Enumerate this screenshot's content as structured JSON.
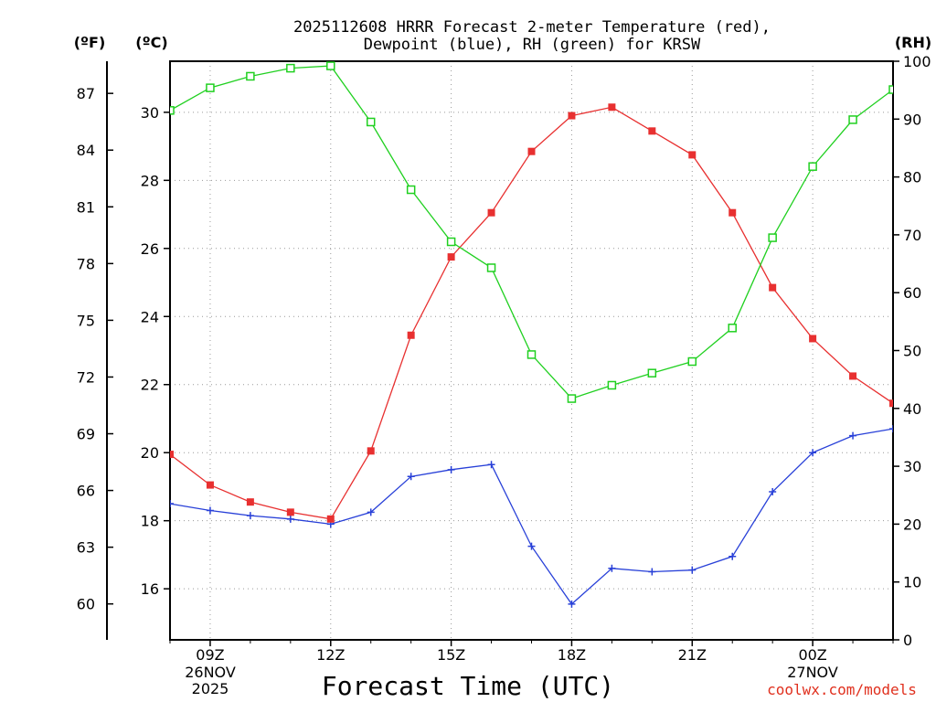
{
  "title_line1": "2025112608 HRRR Forecast 2-meter Temperature (red),",
  "title_line2": "Dewpoint (blue), RH (green) for KRSW",
  "units": {
    "f": "(ºF)",
    "c": "(ºC)",
    "rh": "(RH)"
  },
  "xlabel": "Forecast Time (UTC)",
  "credit": "coolwx.com/models",
  "date_labels": {
    "start_line1": "26NOV",
    "start_line2": "2025",
    "next_day": "27NOV"
  },
  "colors": {
    "temp": "#e83030",
    "dew": "#2840d8",
    "rh": "#20d020"
  },
  "chart_data": {
    "type": "line",
    "title": "2025112608 HRRR Forecast 2-meter Temperature (red), Dewpoint (blue), RH (green) for KRSW",
    "xlabel": "Forecast Time (UTC)",
    "x": [
      0,
      1,
      2,
      3,
      4,
      5,
      6,
      7,
      8,
      9,
      10,
      11,
      12,
      13,
      14,
      15,
      16,
      17,
      18
    ],
    "x_tick_positions": [
      1,
      4,
      7,
      10,
      13,
      16
    ],
    "x_tick_labels": [
      "09Z",
      "12Z",
      "15Z",
      "18Z",
      "21Z",
      "00Z"
    ],
    "xlim": [
      0,
      18
    ],
    "ylim_c": [
      14.5,
      31.5
    ],
    "ylim_rh": [
      0,
      100
    ],
    "c_ticks": [
      16,
      18,
      20,
      22,
      24,
      26,
      28,
      30
    ],
    "f_ticks": [
      60,
      63,
      66,
      69,
      72,
      75,
      78,
      81,
      84,
      87
    ],
    "rh_ticks": [
      0,
      10,
      20,
      30,
      40,
      50,
      60,
      70,
      80,
      90,
      100
    ],
    "series": [
      {
        "name": "Temperature",
        "axis": "c",
        "marker": "filled-square",
        "values": [
          19.95,
          19.05,
          18.55,
          18.25,
          18.05,
          20.05,
          23.45,
          25.75,
          27.05,
          28.85,
          29.9,
          30.15,
          29.45,
          28.75,
          27.05,
          24.85,
          23.35,
          22.25,
          21.45
        ]
      },
      {
        "name": "Dewpoint",
        "axis": "c",
        "marker": "plus",
        "values": [
          18.5,
          18.3,
          18.15,
          18.05,
          17.9,
          18.25,
          19.3,
          19.5,
          19.65,
          17.25,
          15.55,
          16.6,
          16.5,
          16.55,
          16.95,
          18.85,
          20.0,
          20.5,
          20.7
        ]
      },
      {
        "name": "RH",
        "axis": "rh",
        "marker": "open-square",
        "values": [
          91.5,
          95.4,
          97.4,
          98.8,
          99.2,
          89.5,
          77.8,
          68.8,
          64.3,
          49.3,
          41.7,
          44.0,
          46.1,
          48.1,
          53.9,
          69.5,
          81.8,
          89.9,
          95.1
        ]
      }
    ]
  }
}
